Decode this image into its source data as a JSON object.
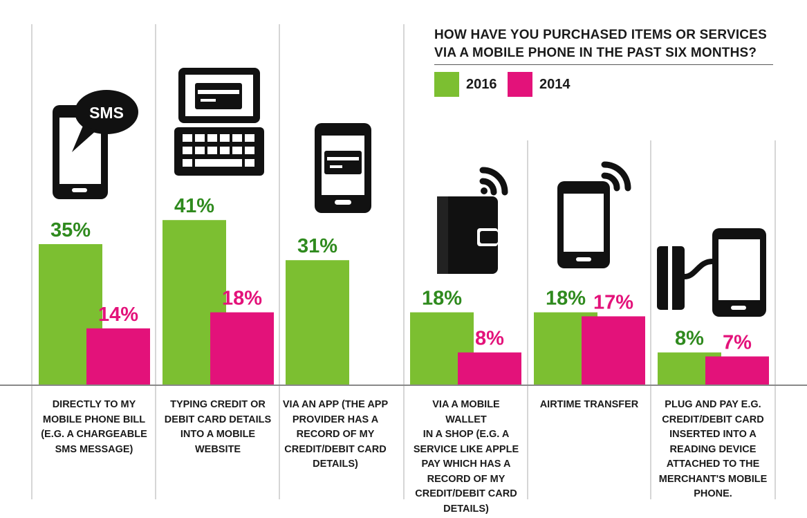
{
  "chart_data": {
    "type": "bar",
    "title": "HOW HAVE YOU PURCHASED ITEMS OR SERVICES VIA A MOBILE PHONE IN THE PAST SIX MONTHS?",
    "title_lines": [
      "HOW HAVE YOU PURCHASED ITEMS OR SERVICES",
      "VIA A MOBILE PHONE IN THE PAST SIX MONTHS?"
    ],
    "categories": [
      "DIRECTLY TO MY MOBILE PHONE BILL (E.G. A CHARGEABLE SMS MESSAGE)",
      "TYPING CREDIT OR DEBIT CARD DETAILS INTO A MOBILE WEBSITE",
      "VIA AN APP (THE APP PROVIDER HAS A RECORD OF MY CREDIT/DEBIT CARD DETAILS)",
      "VIA A MOBILE WALLET IN A SHOP (E.G. A SERVICE LIKE APPLE PAY WHICH HAS A RECORD OF MY CREDIT/DEBIT CARD DETAILS)",
      "AIRTIME TRANSFER",
      "PLUG AND PAY E.G. CREDIT/DEBIT CARD INSERTED INTO A READING DEVICE ATTACHED TO THE MERCHANT'S MOBILE PHONE."
    ],
    "series": [
      {
        "name": "2016",
        "color": "#7cbf31",
        "values": [
          35,
          41,
          31,
          18,
          18,
          8
        ],
        "labels": [
          "35%",
          "41%",
          "31%",
          "18%",
          "18%",
          "8%"
        ]
      },
      {
        "name": "2014",
        "color": "#e3127a",
        "values": [
          14,
          18,
          null,
          8,
          17,
          7
        ],
        "labels": [
          "14%",
          "18%",
          "",
          "8%",
          "17%",
          "7%"
        ]
      }
    ],
    "icons": [
      "sms-phone-icon",
      "laptop-card-icon",
      "phone-card-icon",
      "wallet-wireless-icon",
      "phone-wireless-icon",
      "card-reader-phone-icon"
    ],
    "label_colors": {
      "2016": "#2f8a1e",
      "2014": "#e3127a"
    },
    "grid": false,
    "legend_position": "top-right"
  }
}
